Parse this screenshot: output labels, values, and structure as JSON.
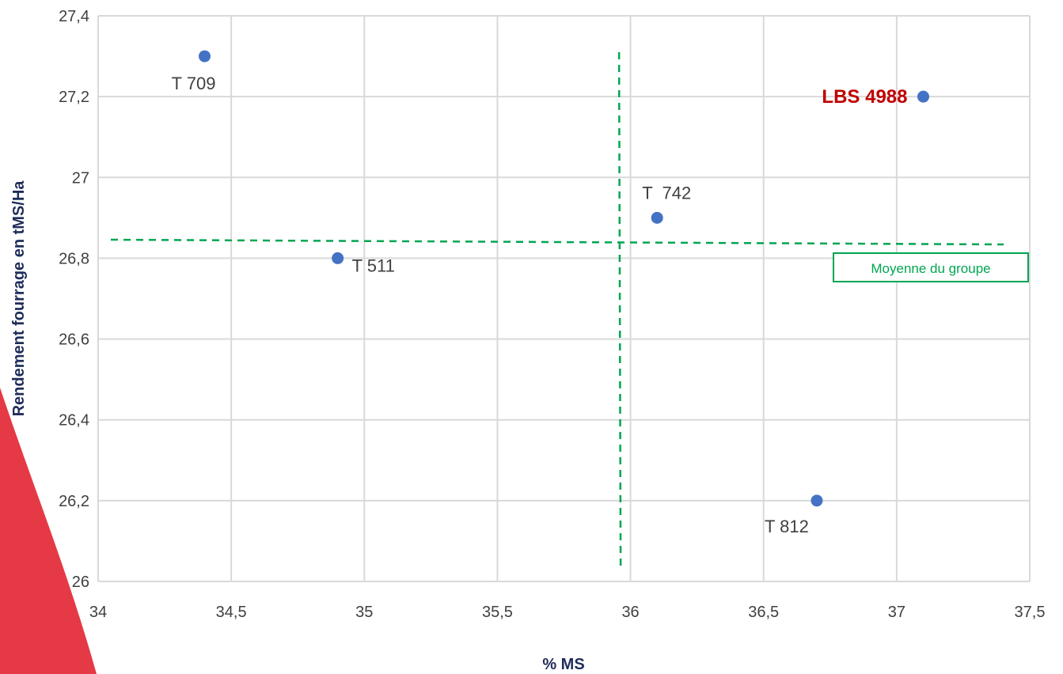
{
  "chart_data": {
    "type": "scatter",
    "title": "",
    "xlabel": "% MS",
    "ylabel": "Rendement fourrage en tMS/Ha",
    "xlim": [
      34,
      37.5
    ],
    "ylim": [
      26,
      27.4
    ],
    "x_ticks": [
      "34",
      "34,5",
      "35",
      "35,5",
      "36",
      "36,5",
      "37",
      "37,5"
    ],
    "x_tick_values": [
      34,
      34.5,
      35,
      35.5,
      36,
      36.5,
      37,
      37.5
    ],
    "y_ticks": [
      "26",
      "26,2",
      "26,4",
      "26,6",
      "26,8",
      "27",
      "27,2",
      "27,4"
    ],
    "y_tick_values": [
      26,
      26.2,
      26.4,
      26.6,
      26.8,
      27,
      27.2,
      27.4
    ],
    "grid": true,
    "points": [
      {
        "label": "T 709",
        "x": 34.4,
        "y": 27.3,
        "highlight": false
      },
      {
        "label": "T 511",
        "x": 34.9,
        "y": 26.8,
        "highlight": false
      },
      {
        "label": "T  742",
        "x": 36.1,
        "y": 26.9,
        "highlight": false
      },
      {
        "label": "T 812",
        "x": 36.7,
        "y": 26.2,
        "highlight": false
      },
      {
        "label": "LBS 4988",
        "x": 37.1,
        "y": 27.2,
        "highlight": true
      }
    ],
    "reference_lines": {
      "label": "Moyenne du groupe",
      "mean_x": 35.96,
      "mean_y": 26.84
    },
    "colors": {
      "point": "#4472c4",
      "highlight_label": "#c00000",
      "reference": "#00a651",
      "grid": "#d9d9d9",
      "decoration": "#e63946"
    }
  }
}
